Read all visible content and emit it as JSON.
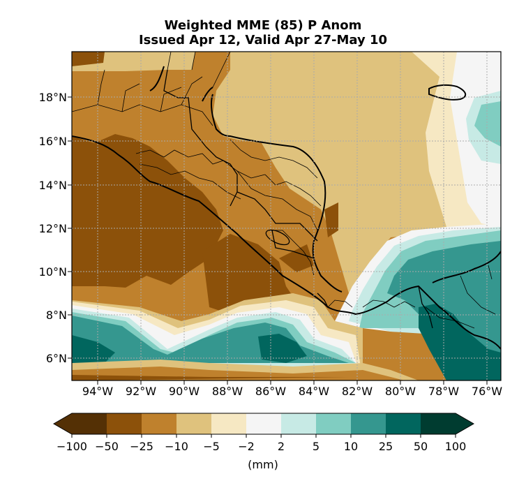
{
  "title": {
    "line1": "Weighted MME (85) P Anom",
    "line2": "Issued Apr 12, Valid Apr 27-May 10"
  },
  "map": {
    "lat_labels": [
      "18°N",
      "16°N",
      "14°N",
      "12°N",
      "10°N",
      "8°N",
      "6°N"
    ],
    "lon_labels": [
      "94°W",
      "92°W",
      "90°W",
      "88°W",
      "86°W",
      "84°W",
      "82°W",
      "80°W",
      "78°W",
      "76°W"
    ]
  },
  "colorbar": {
    "tick_labels": [
      "−100",
      "−50",
      "−25",
      "−10",
      "−5",
      "−2",
      "2",
      "5",
      "10",
      "25",
      "50",
      "100"
    ],
    "unit_label": "(mm)",
    "colors": [
      "#543005",
      "#8c510a",
      "#bf812d",
      "#dfc27d",
      "#f6e8c3",
      "#f5f5f5",
      "#c7eae5",
      "#80cdc1",
      "#35978f",
      "#01665e",
      "#003c30"
    ]
  }
}
